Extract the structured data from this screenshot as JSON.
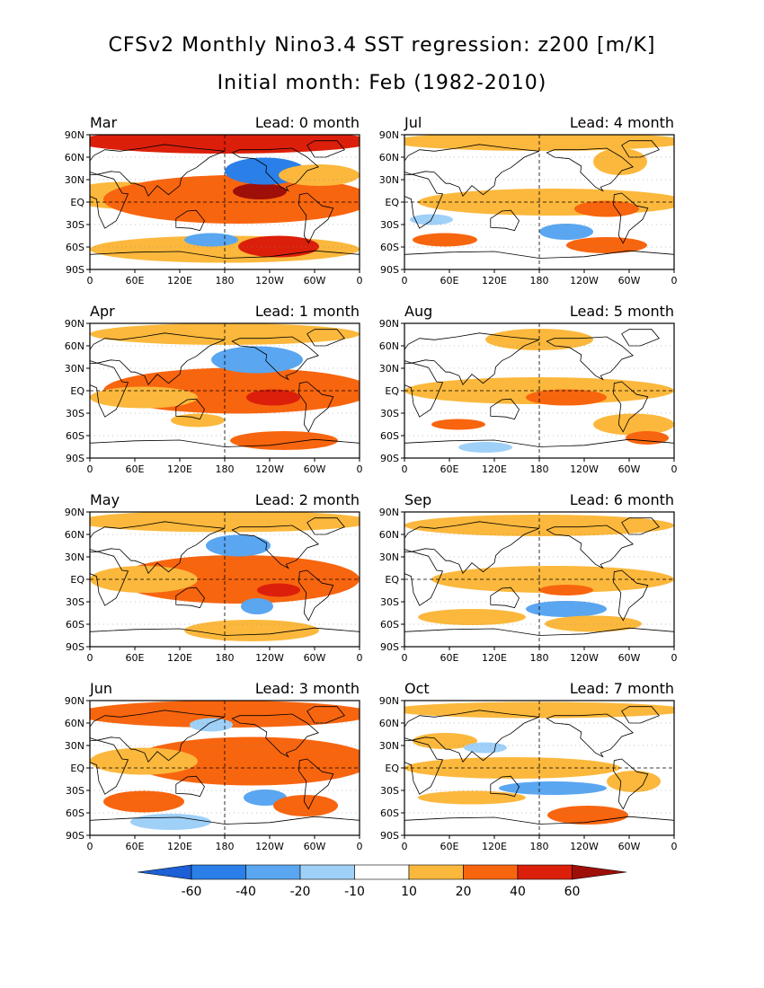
{
  "title": "CFSv2 Monthly Nino3.4 SST regression: z200 [m/K]",
  "subtitle": "Initial month: Feb (1982-2010)",
  "lat_labels": [
    "90N",
    "60N",
    "30N",
    "EQ",
    "30S",
    "60S",
    "90S"
  ],
  "lon_labels": [
    "0",
    "60E",
    "120E",
    "180",
    "120W",
    "60W",
    "0"
  ],
  "panels": [
    {
      "month": "Mar",
      "lead": "Lead: 0 month"
    },
    {
      "month": "Jul",
      "lead": "Lead: 4 month"
    },
    {
      "month": "Apr",
      "lead": "Lead: 1 month"
    },
    {
      "month": "Aug",
      "lead": "Lead: 5 month"
    },
    {
      "month": "May",
      "lead": "Lead: 2 month"
    },
    {
      "month": "Sep",
      "lead": "Lead: 6 month"
    },
    {
      "month": "Jun",
      "lead": "Lead: 3 month"
    },
    {
      "month": "Oct",
      "lead": "Lead: 7 month"
    }
  ],
  "colorbar": {
    "labels": [
      "-60",
      "-40",
      "-20",
      "-10",
      "10",
      "20",
      "40",
      "60"
    ],
    "colors": [
      "#1c5fd6",
      "#2b7fe8",
      "#5aa6f0",
      "#9fd0f8",
      "#ffffff",
      "#fbb83c",
      "#f8650f",
      "#dc1f0a",
      "#9e0f0a"
    ]
  }
}
